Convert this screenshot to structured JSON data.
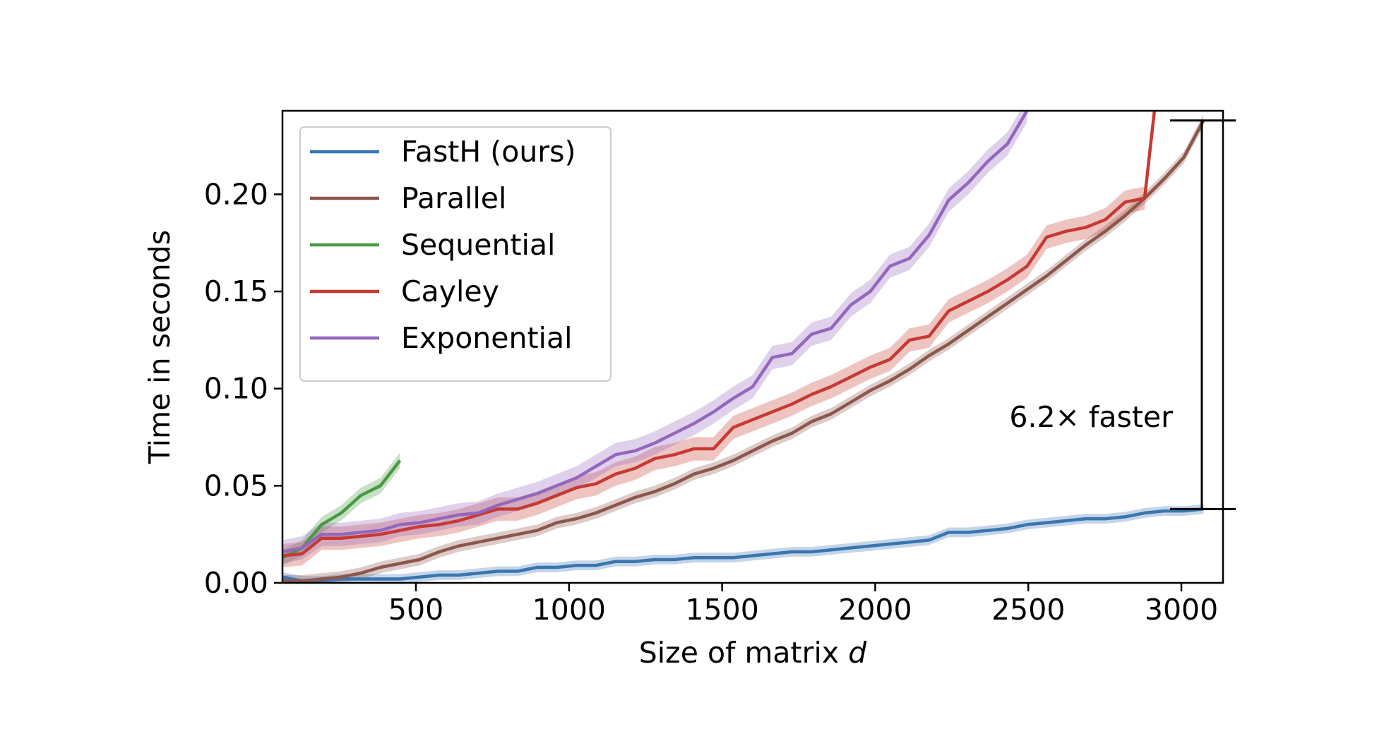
{
  "chart_data": {
    "type": "line",
    "xlabel": "Size of matrix",
    "xlabel_var": "d",
    "ylabel": "Time in seconds",
    "xlim": [
      64,
      3136
    ],
    "ylim": [
      0,
      0.243
    ],
    "xticks": [
      500,
      1000,
      1500,
      2000,
      2500,
      3000
    ],
    "xtick_labels": [
      "500",
      "1000",
      "1500",
      "2000",
      "2500",
      "3000"
    ],
    "yticks": [
      0.0,
      0.05,
      0.1,
      0.15,
      0.2
    ],
    "ytick_labels": [
      "0.00",
      "0.05",
      "0.10",
      "0.15",
      "0.20"
    ],
    "grid": false,
    "legend_position": "top-left",
    "series": [
      {
        "name": "FastH (ours)",
        "color": "#3a75b0",
        "band": 0.0025,
        "points": [
          [
            64,
            0.003
          ],
          [
            128,
            0.001
          ],
          [
            192,
            0.001
          ],
          [
            256,
            0.002
          ],
          [
            320,
            0.002
          ],
          [
            384,
            0.002
          ],
          [
            448,
            0.002
          ],
          [
            512,
            0.003
          ],
          [
            576,
            0.004
          ],
          [
            640,
            0.004
          ],
          [
            704,
            0.005
          ],
          [
            768,
            0.006
          ],
          [
            832,
            0.006
          ],
          [
            896,
            0.008
          ],
          [
            960,
            0.008
          ],
          [
            1024,
            0.009
          ],
          [
            1088,
            0.009
          ],
          [
            1152,
            0.011
          ],
          [
            1216,
            0.011
          ],
          [
            1280,
            0.012
          ],
          [
            1344,
            0.012
          ],
          [
            1408,
            0.013
          ],
          [
            1472,
            0.013
          ],
          [
            1536,
            0.013
          ],
          [
            1600,
            0.014
          ],
          [
            1664,
            0.015
          ],
          [
            1728,
            0.016
          ],
          [
            1792,
            0.016
          ],
          [
            1856,
            0.017
          ],
          [
            1920,
            0.018
          ],
          [
            1984,
            0.019
          ],
          [
            2048,
            0.02
          ],
          [
            2112,
            0.021
          ],
          [
            2176,
            0.022
          ],
          [
            2240,
            0.026
          ],
          [
            2304,
            0.026
          ],
          [
            2368,
            0.027
          ],
          [
            2432,
            0.028
          ],
          [
            2496,
            0.03
          ],
          [
            2560,
            0.031
          ],
          [
            2624,
            0.032
          ],
          [
            2688,
            0.033
          ],
          [
            2752,
            0.033
          ],
          [
            2816,
            0.034
          ],
          [
            2880,
            0.036
          ],
          [
            2944,
            0.037
          ],
          [
            3008,
            0.037
          ],
          [
            3072,
            0.038
          ]
        ]
      },
      {
        "name": "Parallel",
        "color": "#8c564b",
        "band": 0.003,
        "points": [
          [
            64,
            0.001
          ],
          [
            128,
            0.001
          ],
          [
            192,
            0.002
          ],
          [
            256,
            0.003
          ],
          [
            320,
            0.005
          ],
          [
            384,
            0.008
          ],
          [
            448,
            0.01
          ],
          [
            512,
            0.012
          ],
          [
            576,
            0.016
          ],
          [
            640,
            0.019
          ],
          [
            704,
            0.021
          ],
          [
            768,
            0.023
          ],
          [
            832,
            0.025
          ],
          [
            896,
            0.027
          ],
          [
            960,
            0.031
          ],
          [
            1024,
            0.033
          ],
          [
            1088,
            0.036
          ],
          [
            1152,
            0.04
          ],
          [
            1216,
            0.044
          ],
          [
            1280,
            0.047
          ],
          [
            1344,
            0.051
          ],
          [
            1408,
            0.056
          ],
          [
            1472,
            0.059
          ],
          [
            1536,
            0.063
          ],
          [
            1600,
            0.068
          ],
          [
            1664,
            0.073
          ],
          [
            1728,
            0.077
          ],
          [
            1792,
            0.083
          ],
          [
            1856,
            0.087
          ],
          [
            1920,
            0.093
          ],
          [
            1984,
            0.099
          ],
          [
            2048,
            0.104
          ],
          [
            2112,
            0.11
          ],
          [
            2176,
            0.117
          ],
          [
            2240,
            0.123
          ],
          [
            2304,
            0.13
          ],
          [
            2368,
            0.137
          ],
          [
            2432,
            0.144
          ],
          [
            2496,
            0.151
          ],
          [
            2560,
            0.158
          ],
          [
            2624,
            0.166
          ],
          [
            2688,
            0.174
          ],
          [
            2752,
            0.181
          ],
          [
            2816,
            0.189
          ],
          [
            2880,
            0.198
          ],
          [
            2944,
            0.208
          ],
          [
            3008,
            0.219
          ],
          [
            3072,
            0.238
          ]
        ]
      },
      {
        "name": "Sequential",
        "color": "#4a9a43",
        "band": 0.004,
        "points": [
          [
            64,
            0.013
          ],
          [
            128,
            0.018
          ],
          [
            192,
            0.03
          ],
          [
            256,
            0.036
          ],
          [
            320,
            0.045
          ],
          [
            384,
            0.05
          ],
          [
            448,
            0.063
          ]
        ]
      },
      {
        "name": "Cayley",
        "color": "#c63a32",
        "band": 0.006,
        "points": [
          [
            64,
            0.014
          ],
          [
            128,
            0.015
          ],
          [
            192,
            0.023
          ],
          [
            256,
            0.023
          ],
          [
            320,
            0.024
          ],
          [
            384,
            0.025
          ],
          [
            448,
            0.027
          ],
          [
            512,
            0.029
          ],
          [
            576,
            0.03
          ],
          [
            640,
            0.032
          ],
          [
            704,
            0.035
          ],
          [
            768,
            0.038
          ],
          [
            832,
            0.038
          ],
          [
            896,
            0.041
          ],
          [
            960,
            0.045
          ],
          [
            1024,
            0.049
          ],
          [
            1088,
            0.051
          ],
          [
            1152,
            0.056
          ],
          [
            1216,
            0.059
          ],
          [
            1280,
            0.064
          ],
          [
            1344,
            0.066
          ],
          [
            1408,
            0.069
          ],
          [
            1472,
            0.069
          ],
          [
            1536,
            0.08
          ],
          [
            1600,
            0.084
          ],
          [
            1664,
            0.088
          ],
          [
            1728,
            0.092
          ],
          [
            1792,
            0.097
          ],
          [
            1856,
            0.101
          ],
          [
            1920,
            0.106
          ],
          [
            1984,
            0.111
          ],
          [
            2048,
            0.115
          ],
          [
            2112,
            0.125
          ],
          [
            2176,
            0.127
          ],
          [
            2240,
            0.14
          ],
          [
            2304,
            0.145
          ],
          [
            2368,
            0.15
          ],
          [
            2432,
            0.156
          ],
          [
            2496,
            0.163
          ],
          [
            2560,
            0.178
          ],
          [
            2624,
            0.181
          ],
          [
            2688,
            0.183
          ],
          [
            2752,
            0.187
          ],
          [
            2816,
            0.196
          ],
          [
            2880,
            0.198
          ],
          [
            2912,
            0.243
          ]
        ]
      },
      {
        "name": "Exponential",
        "color": "#9467bd",
        "band": 0.006,
        "points": [
          [
            64,
            0.016
          ],
          [
            128,
            0.018
          ],
          [
            192,
            0.025
          ],
          [
            256,
            0.025
          ],
          [
            320,
            0.026
          ],
          [
            384,
            0.027
          ],
          [
            448,
            0.03
          ],
          [
            512,
            0.031
          ],
          [
            576,
            0.033
          ],
          [
            640,
            0.035
          ],
          [
            704,
            0.036
          ],
          [
            768,
            0.04
          ],
          [
            832,
            0.043
          ],
          [
            896,
            0.046
          ],
          [
            960,
            0.05
          ],
          [
            1024,
            0.054
          ],
          [
            1088,
            0.06
          ],
          [
            1152,
            0.066
          ],
          [
            1216,
            0.068
          ],
          [
            1280,
            0.072
          ],
          [
            1344,
            0.077
          ],
          [
            1408,
            0.082
          ],
          [
            1472,
            0.088
          ],
          [
            1536,
            0.095
          ],
          [
            1600,
            0.101
          ],
          [
            1664,
            0.116
          ],
          [
            1728,
            0.118
          ],
          [
            1792,
            0.128
          ],
          [
            1856,
            0.131
          ],
          [
            1920,
            0.143
          ],
          [
            1984,
            0.15
          ],
          [
            2048,
            0.163
          ],
          [
            2112,
            0.167
          ],
          [
            2176,
            0.179
          ],
          [
            2240,
            0.197
          ],
          [
            2304,
            0.206
          ],
          [
            2368,
            0.217
          ],
          [
            2432,
            0.226
          ],
          [
            2496,
            0.243
          ]
        ]
      }
    ],
    "annotation": {
      "text": "6.2× faster",
      "x": 3080,
      "y_top": 0.238,
      "y_bottom": 0.038
    }
  }
}
